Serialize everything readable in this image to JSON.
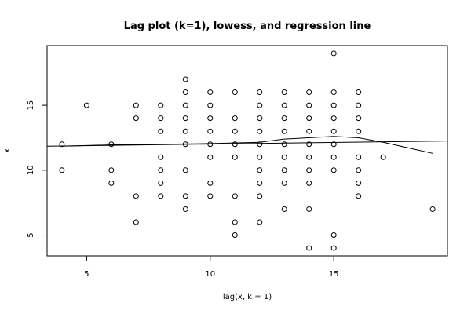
{
  "chart_data": {
    "type": "scatter",
    "title": "Lag plot (k=1), lowess, and regression line",
    "xlabel": "lag(x, k = 1)",
    "ylabel": "x",
    "xlim": [
      3.4,
      19.6
    ],
    "ylim": [
      3.4,
      19.6
    ],
    "xticks": [
      5,
      10,
      15
    ],
    "yticks": [
      5,
      10,
      15
    ],
    "grid": false,
    "points": [
      [
        4,
        12
      ],
      [
        4,
        10
      ],
      [
        5,
        15
      ],
      [
        6,
        12
      ],
      [
        6,
        10
      ],
      [
        6,
        9
      ],
      [
        7,
        15
      ],
      [
        7,
        14
      ],
      [
        7,
        8
      ],
      [
        7,
        6
      ],
      [
        8,
        15
      ],
      [
        8,
        14
      ],
      [
        8,
        13
      ],
      [
        8,
        11
      ],
      [
        8,
        10
      ],
      [
        8,
        9
      ],
      [
        8,
        8
      ],
      [
        9,
        17
      ],
      [
        9,
        16
      ],
      [
        9,
        15
      ],
      [
        9,
        14
      ],
      [
        9,
        13
      ],
      [
        9,
        12
      ],
      [
        9,
        10
      ],
      [
        9,
        8
      ],
      [
        9,
        7
      ],
      [
        10,
        16
      ],
      [
        10,
        15
      ],
      [
        10,
        14
      ],
      [
        10,
        13
      ],
      [
        10,
        12
      ],
      [
        10,
        11
      ],
      [
        10,
        9
      ],
      [
        10,
        8
      ],
      [
        11,
        16
      ],
      [
        11,
        14
      ],
      [
        11,
        13
      ],
      [
        11,
        12
      ],
      [
        11,
        11
      ],
      [
        11,
        8
      ],
      [
        11,
        6
      ],
      [
        11,
        5
      ],
      [
        12,
        16
      ],
      [
        12,
        15
      ],
      [
        12,
        14
      ],
      [
        12,
        13
      ],
      [
        12,
        12
      ],
      [
        12,
        11
      ],
      [
        12,
        10
      ],
      [
        12,
        9
      ],
      [
        12,
        8
      ],
      [
        12,
        6
      ],
      [
        13,
        16
      ],
      [
        13,
        15
      ],
      [
        13,
        14
      ],
      [
        13,
        13
      ],
      [
        13,
        12
      ],
      [
        13,
        11
      ],
      [
        13,
        10
      ],
      [
        13,
        9
      ],
      [
        13,
        7
      ],
      [
        14,
        16
      ],
      [
        14,
        15
      ],
      [
        14,
        14
      ],
      [
        14,
        13
      ],
      [
        14,
        12
      ],
      [
        14,
        11
      ],
      [
        14,
        10
      ],
      [
        14,
        9
      ],
      [
        14,
        7
      ],
      [
        14,
        4
      ],
      [
        15,
        19
      ],
      [
        15,
        16
      ],
      [
        15,
        15
      ],
      [
        15,
        14
      ],
      [
        15,
        13
      ],
      [
        15,
        12
      ],
      [
        15,
        11
      ],
      [
        15,
        10
      ],
      [
        15,
        5
      ],
      [
        15,
        4
      ],
      [
        16,
        16
      ],
      [
        16,
        15
      ],
      [
        16,
        14
      ],
      [
        16,
        13
      ],
      [
        16,
        11
      ],
      [
        16,
        10
      ],
      [
        16,
        9
      ],
      [
        16,
        8
      ],
      [
        17,
        11
      ],
      [
        19,
        7
      ]
    ],
    "series": [
      {
        "type": "line",
        "points": [
          [
            3.4,
            11.85
          ],
          [
            19.6,
            12.25
          ]
        ]
      },
      {
        "type": "line",
        "points": [
          [
            4,
            11.85
          ],
          [
            6,
            11.95
          ],
          [
            8,
            12.0
          ],
          [
            10,
            12.05
          ],
          [
            12,
            12.15
          ],
          [
            13,
            12.4
          ],
          [
            15,
            12.6
          ],
          [
            16,
            12.5
          ],
          [
            17,
            12.15
          ],
          [
            19,
            11.3
          ]
        ]
      }
    ]
  }
}
